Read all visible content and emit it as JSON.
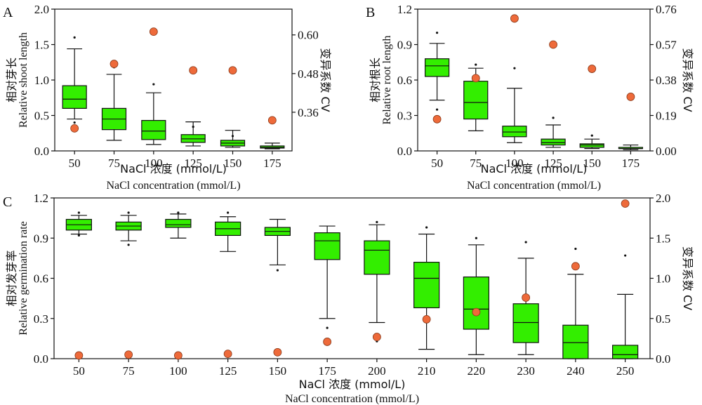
{
  "figure": {
    "panels": [
      "A",
      "B",
      "C"
    ]
  },
  "style": {
    "box_fill": "#33ee00",
    "box_stroke": "#111111",
    "cv_fill": "#ee6a3a",
    "cv_stroke": "#8a3a1a"
  },
  "chart_data": [
    {
      "panel": "A",
      "type": "box",
      "categories": [
        "50",
        "75",
        "100",
        "125",
        "150",
        "175"
      ],
      "ylabel_cn": "相对芽长",
      "ylabel": "Relative shoot length",
      "y2label": "变异系数 CV",
      "xlabel_cn": "NaCl 浓度 (mmol/L)",
      "xlabel": "NaCl concentration (mmol/L)",
      "ylim": [
        0,
        2.0
      ],
      "yticks": [
        "0.0",
        "0.5",
        "1.0",
        "1.5",
        "2.0"
      ],
      "y2lim": [
        0.24,
        0.68
      ],
      "y2ticks": [
        "0.36",
        "0.48",
        "0.60"
      ],
      "boxes": [
        {
          "whislo": 0.45,
          "q1": 0.6,
          "med": 0.73,
          "q3": 0.92,
          "whishi": 1.44,
          "fliers": [
            0.4,
            1.6
          ]
        },
        {
          "whislo": 0.15,
          "q1": 0.3,
          "med": 0.45,
          "q3": 0.6,
          "whishi": 1.08,
          "fliers": [
            1.18
          ]
        },
        {
          "whislo": 0.09,
          "q1": 0.16,
          "med": 0.28,
          "q3": 0.43,
          "whishi": 0.82,
          "fliers": [
            0.94
          ]
        },
        {
          "whislo": 0.07,
          "q1": 0.12,
          "med": 0.17,
          "q3": 0.23,
          "whishi": 0.41,
          "fliers": [
            0.34
          ]
        },
        {
          "whislo": 0.05,
          "q1": 0.07,
          "med": 0.11,
          "q3": 0.15,
          "whishi": 0.29,
          "fliers": [
            0.21
          ]
        },
        {
          "whislo": 0.03,
          "q1": 0.04,
          "med": 0.05,
          "q3": 0.07,
          "whishi": 0.11,
          "fliers": []
        }
      ],
      "cv": [
        0.31,
        0.51,
        0.61,
        0.49,
        0.49,
        0.335
      ]
    },
    {
      "panel": "B",
      "type": "box",
      "categories": [
        "50",
        "75",
        "100",
        "125",
        "150",
        "175"
      ],
      "ylabel_cn": "相对根长",
      "ylabel": "Relative root length",
      "y2label": "变异系数 CV",
      "xlabel_cn": "NaCl 浓度 (mmol/L)",
      "xlabel": "NaCl concentration (mmol/L)",
      "ylim": [
        0,
        1.2
      ],
      "yticks": [
        "0.0",
        "0.3",
        "0.6",
        "0.9",
        "1.2"
      ],
      "y2lim": [
        0,
        0.76
      ],
      "y2ticks": [
        "0.00",
        "0.19",
        "0.38",
        "0.57",
        "0.76"
      ],
      "boxes": [
        {
          "whislo": 0.43,
          "q1": 0.63,
          "med": 0.72,
          "q3": 0.78,
          "whishi": 0.91,
          "fliers": [
            0.35,
            1.0
          ]
        },
        {
          "whislo": 0.17,
          "q1": 0.27,
          "med": 0.41,
          "q3": 0.59,
          "whishi": 0.7,
          "fliers": [
            0.73
          ]
        },
        {
          "whislo": 0.07,
          "q1": 0.12,
          "med": 0.16,
          "q3": 0.21,
          "whishi": 0.53,
          "fliers": [
            0.7
          ]
        },
        {
          "whislo": 0.03,
          "q1": 0.05,
          "med": 0.07,
          "q3": 0.1,
          "whishi": 0.22,
          "fliers": [
            0.28
          ]
        },
        {
          "whislo": 0.02,
          "q1": 0.03,
          "med": 0.05,
          "q3": 0.06,
          "whishi": 0.1,
          "fliers": [
            0.13
          ]
        },
        {
          "whislo": 0.01,
          "q1": 0.02,
          "med": 0.02,
          "q3": 0.03,
          "whishi": 0.05,
          "fliers": []
        }
      ],
      "cv": [
        0.17,
        0.39,
        0.71,
        0.57,
        0.44,
        0.29
      ]
    },
    {
      "panel": "C",
      "type": "box",
      "categories": [
        "50",
        "75",
        "100",
        "125",
        "150",
        "175",
        "200",
        "210",
        "220",
        "230",
        "240",
        "250"
      ],
      "ylabel_cn": "相对发芽率",
      "ylabel": "Relative germination rate",
      "y2label": "变异系数 CV",
      "xlabel_cn": "NaCl 浓度 (mmol/L)",
      "xlabel": "NaCl concentration (mmol/L)",
      "ylim": [
        0,
        1.2
      ],
      "yticks": [
        "0.0",
        "0.3",
        "0.6",
        "0.9",
        "1.2"
      ],
      "y2lim": [
        0,
        2.0
      ],
      "y2ticks": [
        "0.0",
        "0.5",
        "1.0",
        "1.5",
        "2.0"
      ],
      "boxes": [
        {
          "whislo": 0.93,
          "q1": 0.96,
          "med": 1.0,
          "q3": 1.04,
          "whishi": 1.07,
          "fliers": [
            0.92,
            1.09
          ]
        },
        {
          "whislo": 0.88,
          "q1": 0.96,
          "med": 0.99,
          "q3": 1.02,
          "whishi": 1.07,
          "fliers": [
            0.85,
            1.09
          ]
        },
        {
          "whislo": 0.9,
          "q1": 0.98,
          "med": 1.0,
          "q3": 1.04,
          "whishi": 1.08,
          "fliers": [
            1.09
          ]
        },
        {
          "whislo": 0.8,
          "q1": 0.92,
          "med": 0.97,
          "q3": 1.02,
          "whishi": 1.06,
          "fliers": [
            1.09
          ]
        },
        {
          "whislo": 0.7,
          "q1": 0.92,
          "med": 0.95,
          "q3": 0.98,
          "whishi": 1.04,
          "fliers": [
            0.66
          ]
        },
        {
          "whislo": 0.3,
          "q1": 0.74,
          "med": 0.88,
          "q3": 0.94,
          "whishi": 0.99,
          "fliers": [
            0.23
          ]
        },
        {
          "whislo": 0.27,
          "q1": 0.63,
          "med": 0.81,
          "q3": 0.88,
          "whishi": 1.0,
          "fliers": [
            0.13,
            1.02
          ]
        },
        {
          "whislo": 0.07,
          "q1": 0.38,
          "med": 0.6,
          "q3": 0.72,
          "whishi": 0.93,
          "fliers": [
            0.98
          ]
        },
        {
          "whislo": 0.03,
          "q1": 0.22,
          "med": 0.37,
          "q3": 0.61,
          "whishi": 0.85,
          "fliers": [
            0.9
          ]
        },
        {
          "whislo": 0.03,
          "q1": 0.12,
          "med": 0.27,
          "q3": 0.41,
          "whishi": 0.75,
          "fliers": [
            0.87
          ]
        },
        {
          "whislo": 0.0,
          "q1": 0.0,
          "med": 0.12,
          "q3": 0.25,
          "whishi": 0.63,
          "fliers": [
            0.82
          ]
        },
        {
          "whislo": 0.0,
          "q1": 0.0,
          "med": 0.03,
          "q3": 0.1,
          "whishi": 0.48,
          "fliers": [
            0.77
          ]
        }
      ],
      "cv": [
        0.04,
        0.05,
        0.04,
        0.06,
        0.08,
        0.21,
        0.27,
        0.49,
        0.58,
        0.76,
        1.15,
        1.93
      ]
    }
  ]
}
